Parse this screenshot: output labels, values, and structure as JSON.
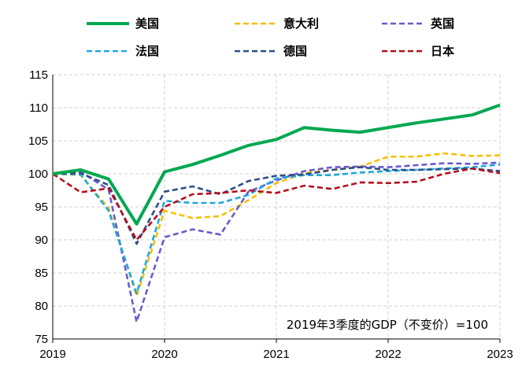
{
  "chart_data": {
    "type": "line",
    "title": "",
    "xlabel": "",
    "ylabel": "",
    "annotation": "2019年3季度的GDP（不变价）=100",
    "ylim": [
      75,
      115
    ],
    "yticks": [
      75,
      80,
      85,
      90,
      95,
      100,
      105,
      110,
      115
    ],
    "xlim": [
      2019.5,
      2023.5
    ],
    "xticks": [
      {
        "value": 2019.5,
        "label": "2019"
      },
      {
        "value": 2020.5,
        "label": "2020"
      },
      {
        "value": 2021.5,
        "label": "2021"
      },
      {
        "value": 2022.5,
        "label": "2022"
      },
      {
        "value": 2023.5,
        "label": "2023"
      }
    ],
    "x": [
      2019.5,
      2019.75,
      2020.0,
      2020.25,
      2020.5,
      2020.75,
      2021.0,
      2021.25,
      2021.5,
      2021.75,
      2022.0,
      2022.25,
      2022.5,
      2022.75,
      2023.0,
      2023.25,
      2023.5
    ],
    "series": [
      {
        "name": "美国",
        "color": "#00A84F",
        "style": "solid",
        "values": [
          100.0,
          100.6,
          99.2,
          92.4,
          100.3,
          101.4,
          102.8,
          104.3,
          105.2,
          107.0,
          106.6,
          106.3,
          107.0,
          107.7,
          108.3,
          108.9,
          110.4
        ]
      },
      {
        "name": "意大利",
        "color": "#F5C000",
        "style": "dashed",
        "values": [
          100.0,
          99.8,
          94.8,
          81.5,
          94.4,
          93.3,
          93.6,
          96.0,
          98.6,
          100.1,
          100.6,
          101.1,
          102.6,
          102.6,
          103.1,
          102.7,
          102.8
        ]
      },
      {
        "name": "英国",
        "color": "#6A5ACD",
        "style": "dashed",
        "values": [
          100.0,
          100.3,
          97.6,
          77.6,
          90.4,
          91.6,
          90.8,
          97.3,
          99.0,
          100.4,
          101.0,
          101.1,
          101.0,
          101.3,
          101.6,
          101.5,
          101.7
        ]
      },
      {
        "name": "法国",
        "color": "#1FA8E0",
        "style": "dashed",
        "values": [
          100.0,
          99.9,
          94.4,
          81.9,
          95.9,
          95.6,
          95.6,
          96.8,
          99.3,
          99.8,
          99.8,
          100.2,
          100.4,
          100.6,
          100.8,
          101.0,
          101.4
        ]
      },
      {
        "name": "德国",
        "color": "#2C4E8A",
        "style": "dashed",
        "values": [
          100.0,
          100.1,
          98.3,
          89.4,
          97.3,
          98.1,
          96.9,
          98.9,
          99.7,
          99.9,
          100.6,
          101.0,
          100.6,
          100.6,
          100.7,
          100.8,
          100.4
        ]
      },
      {
        "name": "日本",
        "color": "#B5101E",
        "style": "dashed",
        "values": [
          100.0,
          97.2,
          97.8,
          90.0,
          95.0,
          96.9,
          97.1,
          97.5,
          97.1,
          98.2,
          97.7,
          98.7,
          98.6,
          98.8,
          100.0,
          100.8,
          100.1
        ]
      }
    ],
    "legend": {
      "position": "top",
      "columns": 3
    },
    "grid": true
  }
}
